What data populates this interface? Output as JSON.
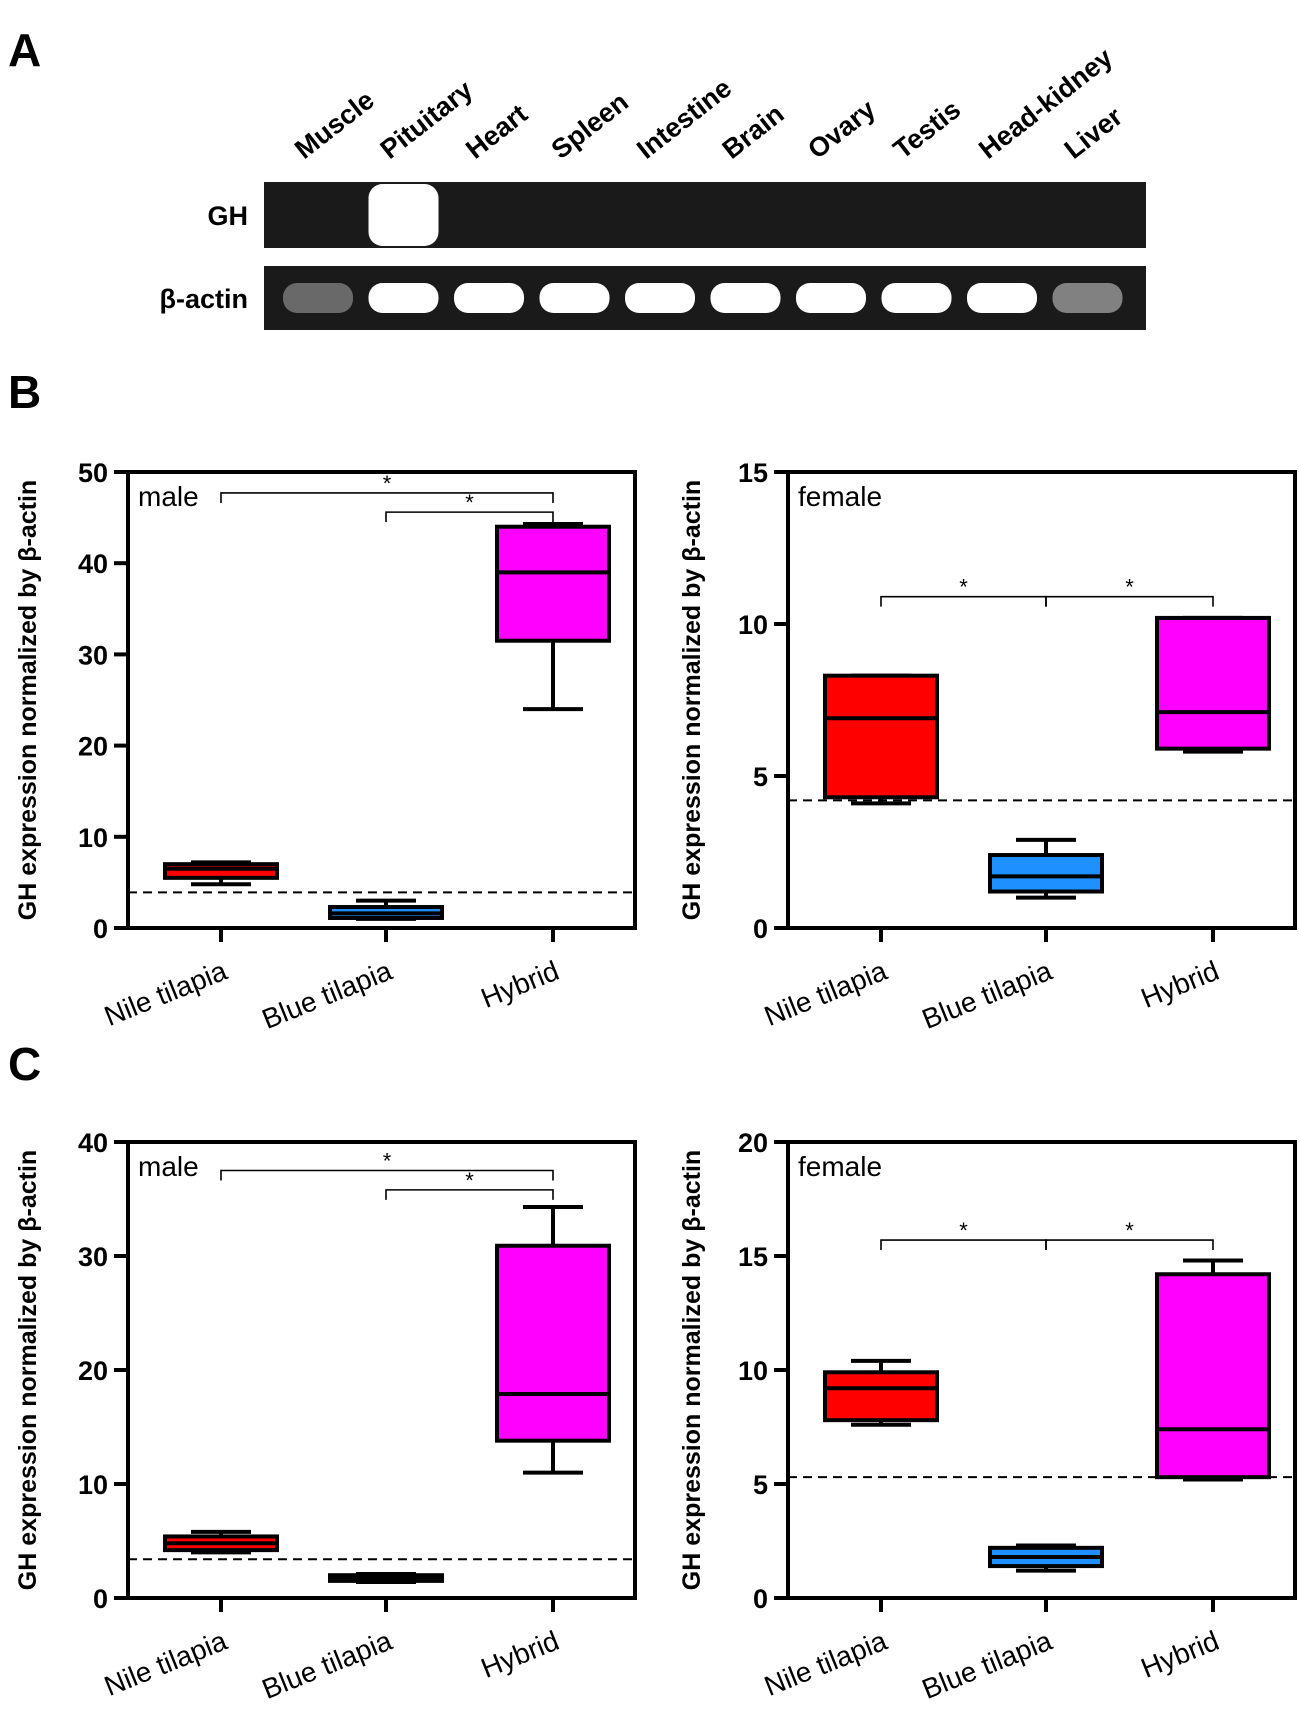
{
  "panels": {
    "a_letter": "A",
    "b_letter": "B",
    "c_letter": "C"
  },
  "gel": {
    "lanes": [
      "Muscle",
      "Pituitary",
      "Heart",
      "Spleen",
      "Intestine",
      "Brain",
      "Ovary",
      "Testis",
      "Head-kidney",
      "Liver"
    ],
    "rows": [
      {
        "label": "GH",
        "bands": [
          0,
          1,
          0,
          0,
          0,
          0,
          0,
          0,
          0,
          0
        ]
      },
      {
        "label": "β-actin",
        "bands": [
          0.35,
          1,
          1,
          1,
          1,
          1,
          1,
          1,
          1,
          0.45
        ]
      }
    ]
  },
  "colors": {
    "nile": "#ff0000",
    "blue": "#1e90ff",
    "hybrid": "#ff00ff",
    "gel_bg": "#1a1a1a",
    "band": "#ffffff"
  },
  "chart_data": [
    {
      "id": "B-male",
      "type": "box",
      "sex": "male",
      "ylabel": "GH expression normalized by β-actin",
      "ylim": [
        0,
        50
      ],
      "yticks": [
        0,
        10,
        20,
        30,
        40,
        50
      ],
      "categories": [
        "Nile tilapia",
        "Blue tilapia",
        "Hybrid"
      ],
      "boxes": [
        {
          "min": 4.8,
          "q1": 5.5,
          "median": 6.5,
          "q3": 7.0,
          "max": 7.2
        },
        {
          "min": 1.0,
          "q1": 1.1,
          "median": 1.6,
          "q3": 2.3,
          "max": 3.0
        },
        {
          "min": 24.0,
          "q1": 31.5,
          "median": 39.0,
          "q3": 44.0,
          "max": 44.3
        }
      ],
      "reference_line": 3.9,
      "significance": [
        {
          "from": 0,
          "to": 2,
          "y": 47.7,
          "label": "*"
        },
        {
          "from": 1,
          "to": 2,
          "y": 45.6,
          "label": "*"
        }
      ]
    },
    {
      "id": "B-female",
      "type": "box",
      "sex": "female",
      "ylabel": "GH expression normalized by β-actin",
      "ylim": [
        0,
        15
      ],
      "yticks": [
        0,
        5,
        10,
        15
      ],
      "categories": [
        "Nile tilapia",
        "Blue tilapia",
        "Hybrid"
      ],
      "boxes": [
        {
          "min": 4.1,
          "q1": 4.3,
          "median": 6.9,
          "q3": 8.3,
          "max": 8.3
        },
        {
          "min": 1.0,
          "q1": 1.2,
          "median": 1.7,
          "q3": 2.4,
          "max": 2.9
        },
        {
          "min": 5.8,
          "q1": 5.9,
          "median": 7.1,
          "q3": 10.2,
          "max": 10.2
        }
      ],
      "reference_line": 4.2,
      "significance": [
        {
          "from": 0,
          "to": 1,
          "y": 10.9,
          "label": "*"
        },
        {
          "from": 1,
          "to": 2,
          "y": 10.9,
          "label": "*"
        }
      ]
    },
    {
      "id": "C-male",
      "type": "box",
      "sex": "male",
      "ylabel": "GH expression normalized by β-actin",
      "ylim": [
        0,
        40
      ],
      "yticks": [
        0,
        10,
        20,
        30,
        40
      ],
      "categories": [
        "Nile tilapia",
        "Blue tilapia",
        "Hybrid"
      ],
      "boxes": [
        {
          "min": 4.0,
          "q1": 4.2,
          "median": 4.8,
          "q3": 5.4,
          "max": 5.8
        },
        {
          "min": 1.4,
          "q1": 1.5,
          "median": 1.7,
          "q3": 2.0,
          "max": 2.1
        },
        {
          "min": 11.0,
          "q1": 13.8,
          "median": 17.9,
          "q3": 30.9,
          "max": 34.3
        }
      ],
      "reference_line": 3.4,
      "significance": [
        {
          "from": 0,
          "to": 2,
          "y": 37.5,
          "label": "*"
        },
        {
          "from": 1,
          "to": 2,
          "y": 35.8,
          "label": "*"
        }
      ]
    },
    {
      "id": "C-female",
      "type": "box",
      "sex": "female",
      "ylabel": "GH expression normalized by β-actin",
      "ylim": [
        0,
        20
      ],
      "yticks": [
        0,
        5,
        10,
        15,
        20
      ],
      "categories": [
        "Nile tilapia",
        "Blue tilapia",
        "Hybrid"
      ],
      "boxes": [
        {
          "min": 7.6,
          "q1": 7.8,
          "median": 9.2,
          "q3": 9.9,
          "max": 10.4
        },
        {
          "min": 1.2,
          "q1": 1.4,
          "median": 1.8,
          "q3": 2.2,
          "max": 2.3
        },
        {
          "min": 5.2,
          "q1": 5.3,
          "median": 7.4,
          "q3": 14.2,
          "max": 14.8
        }
      ],
      "reference_line": 5.3,
      "significance": [
        {
          "from": 0,
          "to": 1,
          "y": 15.7,
          "label": "*"
        },
        {
          "from": 1,
          "to": 2,
          "y": 15.7,
          "label": "*"
        }
      ]
    }
  ]
}
